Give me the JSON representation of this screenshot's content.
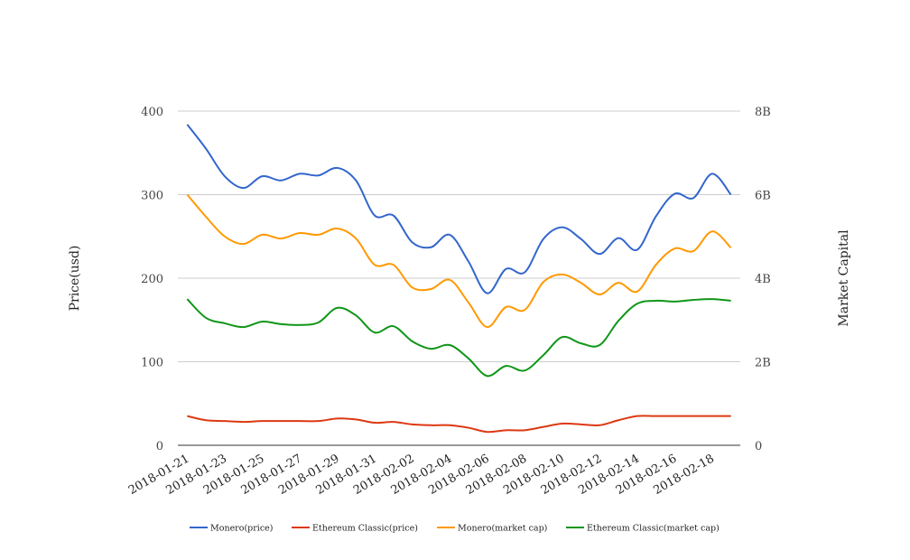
{
  "chart_data": {
    "type": "line",
    "title": "",
    "xlabel": "",
    "ylabel": "Price(usd)",
    "y2label": "Market Capital",
    "ylim": [
      0,
      400
    ],
    "y2lim": [
      0,
      8000000000
    ],
    "yticks": [
      "0",
      "100",
      "200",
      "300",
      "400"
    ],
    "y2ticks": [
      "0",
      "2B",
      "4B",
      "6B",
      "8B"
    ],
    "grid": true,
    "legend": "bottom",
    "smooth": true,
    "x": [
      "2018-01-21",
      "2018-01-22",
      "2018-01-23",
      "2018-01-24",
      "2018-01-25",
      "2018-01-26",
      "2018-01-27",
      "2018-01-28",
      "2018-01-29",
      "2018-01-30",
      "2018-01-31",
      "2018-02-01",
      "2018-02-02",
      "2018-02-03",
      "2018-02-04",
      "2018-02-05",
      "2018-02-06",
      "2018-02-07",
      "2018-02-08",
      "2018-02-09",
      "2018-02-10",
      "2018-02-11",
      "2018-02-12",
      "2018-02-13",
      "2018-02-14",
      "2018-02-15",
      "2018-02-16",
      "2018-02-17",
      "2018-02-18",
      "2018-02-19"
    ],
    "xticklabels": [
      "2018-01-21",
      "2018-01-23",
      "2018-01-25",
      "2018-01-27",
      "2018-01-29",
      "2018-01-31",
      "2018-02-02",
      "2018-02-04",
      "2018-02-06",
      "2018-02-08",
      "2018-02-10",
      "2018-02-12",
      "2018-02-14",
      "2018-02-16",
      "2018-02-18"
    ],
    "series": [
      {
        "name": "Monero(price)",
        "axis": "left",
        "color": "#3366cc",
        "values": [
          384,
          355,
          322,
          308,
          322,
          317,
          325,
          323,
          332,
          317,
          275,
          275,
          243,
          237,
          252,
          220,
          182,
          211,
          207,
          247,
          261,
          247,
          229,
          248,
          234,
          274,
          301,
          296,
          325,
          300
        ]
      },
      {
        "name": "Ethereum Classic(price)",
        "axis": "left",
        "color": "#dc3912",
        "values": [
          35,
          30,
          29,
          28,
          29,
          29,
          29,
          29,
          32,
          31,
          27,
          28,
          25,
          24,
          24,
          21,
          16,
          18,
          18,
          22,
          26,
          25,
          24,
          30,
          35,
          35,
          35,
          35,
          35,
          35
        ]
      },
      {
        "name": "Monero(market cap)",
        "axis": "right",
        "color": "#ff9900",
        "values": [
          6000000000.0,
          5470000000.0,
          5000000000.0,
          4820000000.0,
          5040000000.0,
          4950000000.0,
          5080000000.0,
          5040000000.0,
          5190000000.0,
          4950000000.0,
          4320000000.0,
          4320000000.0,
          3780000000.0,
          3740000000.0,
          3960000000.0,
          3420000000.0,
          2830000000.0,
          3310000000.0,
          3240000000.0,
          3910000000.0,
          4090000000.0,
          3890000000.0,
          3610000000.0,
          3890000000.0,
          3680000000.0,
          4320000000.0,
          4710000000.0,
          4650000000.0,
          5120000000.0,
          4730000000.0
        ]
      },
      {
        "name": "Ethereum Classic(market cap)",
        "axis": "right",
        "color": "#109618",
        "values": [
          3500000000.0,
          3050000000.0,
          2920000000.0,
          2830000000.0,
          2960000000.0,
          2900000000.0,
          2880000000.0,
          2940000000.0,
          3290000000.0,
          3110000000.0,
          2700000000.0,
          2850000000.0,
          2490000000.0,
          2310000000.0,
          2400000000.0,
          2080000000.0,
          1660000000.0,
          1900000000.0,
          1790000000.0,
          2160000000.0,
          2590000000.0,
          2440000000.0,
          2400000000.0,
          2980000000.0,
          3390000000.0,
          3460000000.0,
          3440000000.0,
          3480000000.0,
          3500000000.0,
          3460000000.0
        ]
      }
    ]
  }
}
